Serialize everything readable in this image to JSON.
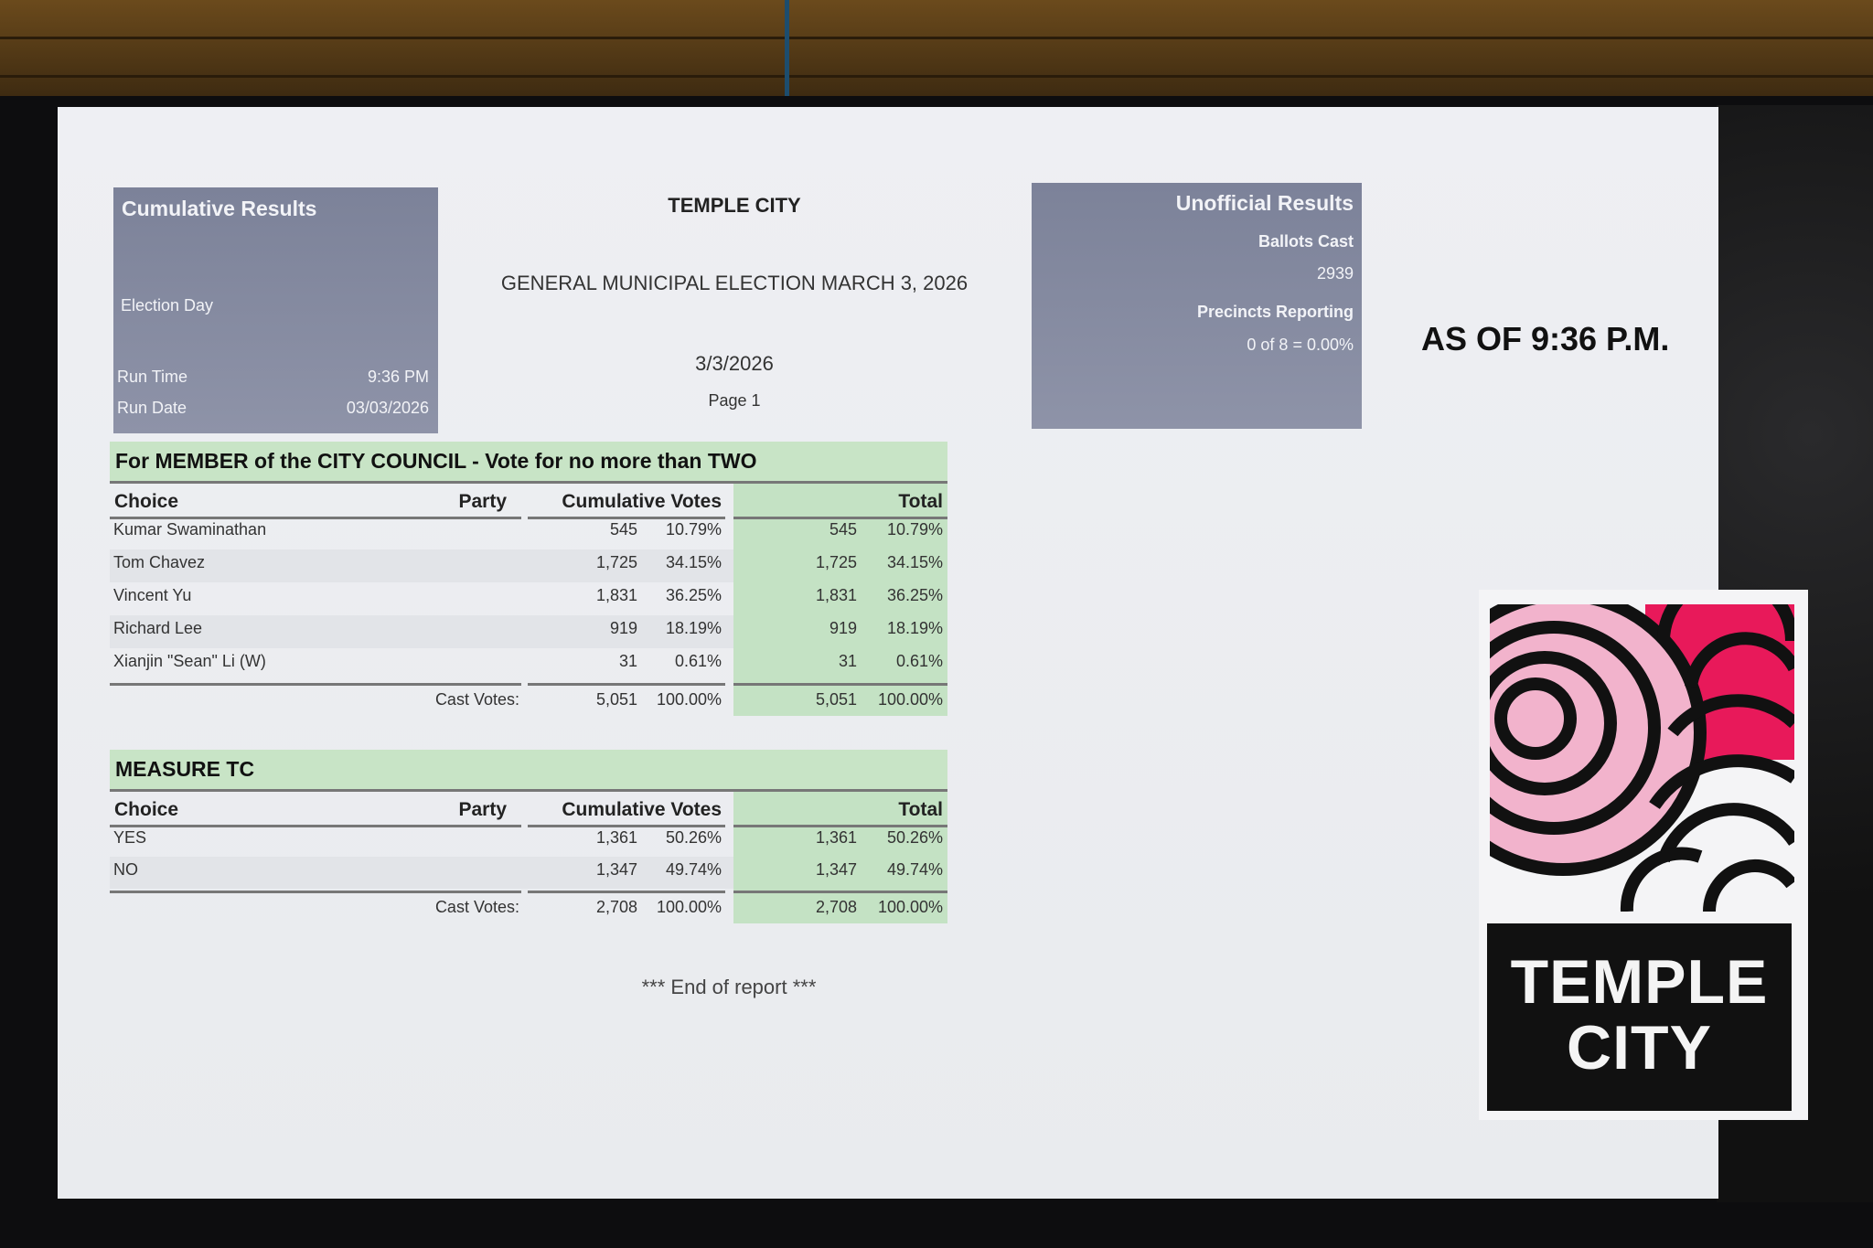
{
  "left_box": {
    "title": "Cumulative Results",
    "subtitle": "Election Day",
    "run_time_label": "Run Time",
    "run_time": "9:36 PM",
    "run_date_label": "Run Date",
    "run_date": "03/03/2026"
  },
  "header": {
    "title": "TEMPLE CITY",
    "election": "GENERAL MUNICIPAL ELECTION MARCH 3, 2026",
    "date": "3/3/2026",
    "page": "Page 1"
  },
  "right_box": {
    "title": "Unofficial Results",
    "ballots_label": "Ballots Cast",
    "ballots": "2939",
    "precincts_label": "Precincts Reporting",
    "precincts": "0 of 8 = 0.00%"
  },
  "as_of": "AS OF 9:36 P.M.",
  "columns": {
    "choice": "Choice",
    "party": "Party",
    "cumulative": "Cumulative Votes",
    "total": "Total",
    "cast": "Cast Votes:"
  },
  "contests": [
    {
      "title": "For MEMBER of the CITY COUNCIL - Vote for no more than TWO",
      "rows": [
        {
          "choice": "Kumar Swaminathan",
          "votes": "545",
          "pct": "10.79%",
          "total": "545",
          "total_pct": "10.79%"
        },
        {
          "choice": "Tom Chavez",
          "votes": "1,725",
          "pct": "34.15%",
          "total": "1,725",
          "total_pct": "34.15%"
        },
        {
          "choice": "Vincent Yu",
          "votes": "1,831",
          "pct": "36.25%",
          "total": "1,831",
          "total_pct": "36.25%"
        },
        {
          "choice": "Richard Lee",
          "votes": "919",
          "pct": "18.19%",
          "total": "919",
          "total_pct": "18.19%"
        },
        {
          "choice": "Xianjin \"Sean\" Li (W)",
          "votes": "31",
          "pct": "0.61%",
          "total": "31",
          "total_pct": "0.61%"
        }
      ],
      "cast": {
        "votes": "5,051",
        "pct": "100.00%",
        "total": "5,051",
        "total_pct": "100.00%"
      }
    },
    {
      "title": "MEASURE TC",
      "rows": [
        {
          "choice": "YES",
          "votes": "1,361",
          "pct": "50.26%",
          "total": "1,361",
          "total_pct": "50.26%"
        },
        {
          "choice": "NO",
          "votes": "1,347",
          "pct": "49.74%",
          "total": "1,347",
          "total_pct": "49.74%"
        }
      ],
      "cast": {
        "votes": "2,708",
        "pct": "100.00%",
        "total": "2,708",
        "total_pct": "100.00%"
      }
    }
  ],
  "footer": "*** End of report ***",
  "logo": {
    "line1": "TEMPLE",
    "line2": "CITY"
  },
  "colors": {
    "header_green": "#c8e4c6",
    "box_gray": "#858aa0",
    "logo_pink": "#f2b3cc",
    "logo_magenta": "#e8195a"
  }
}
